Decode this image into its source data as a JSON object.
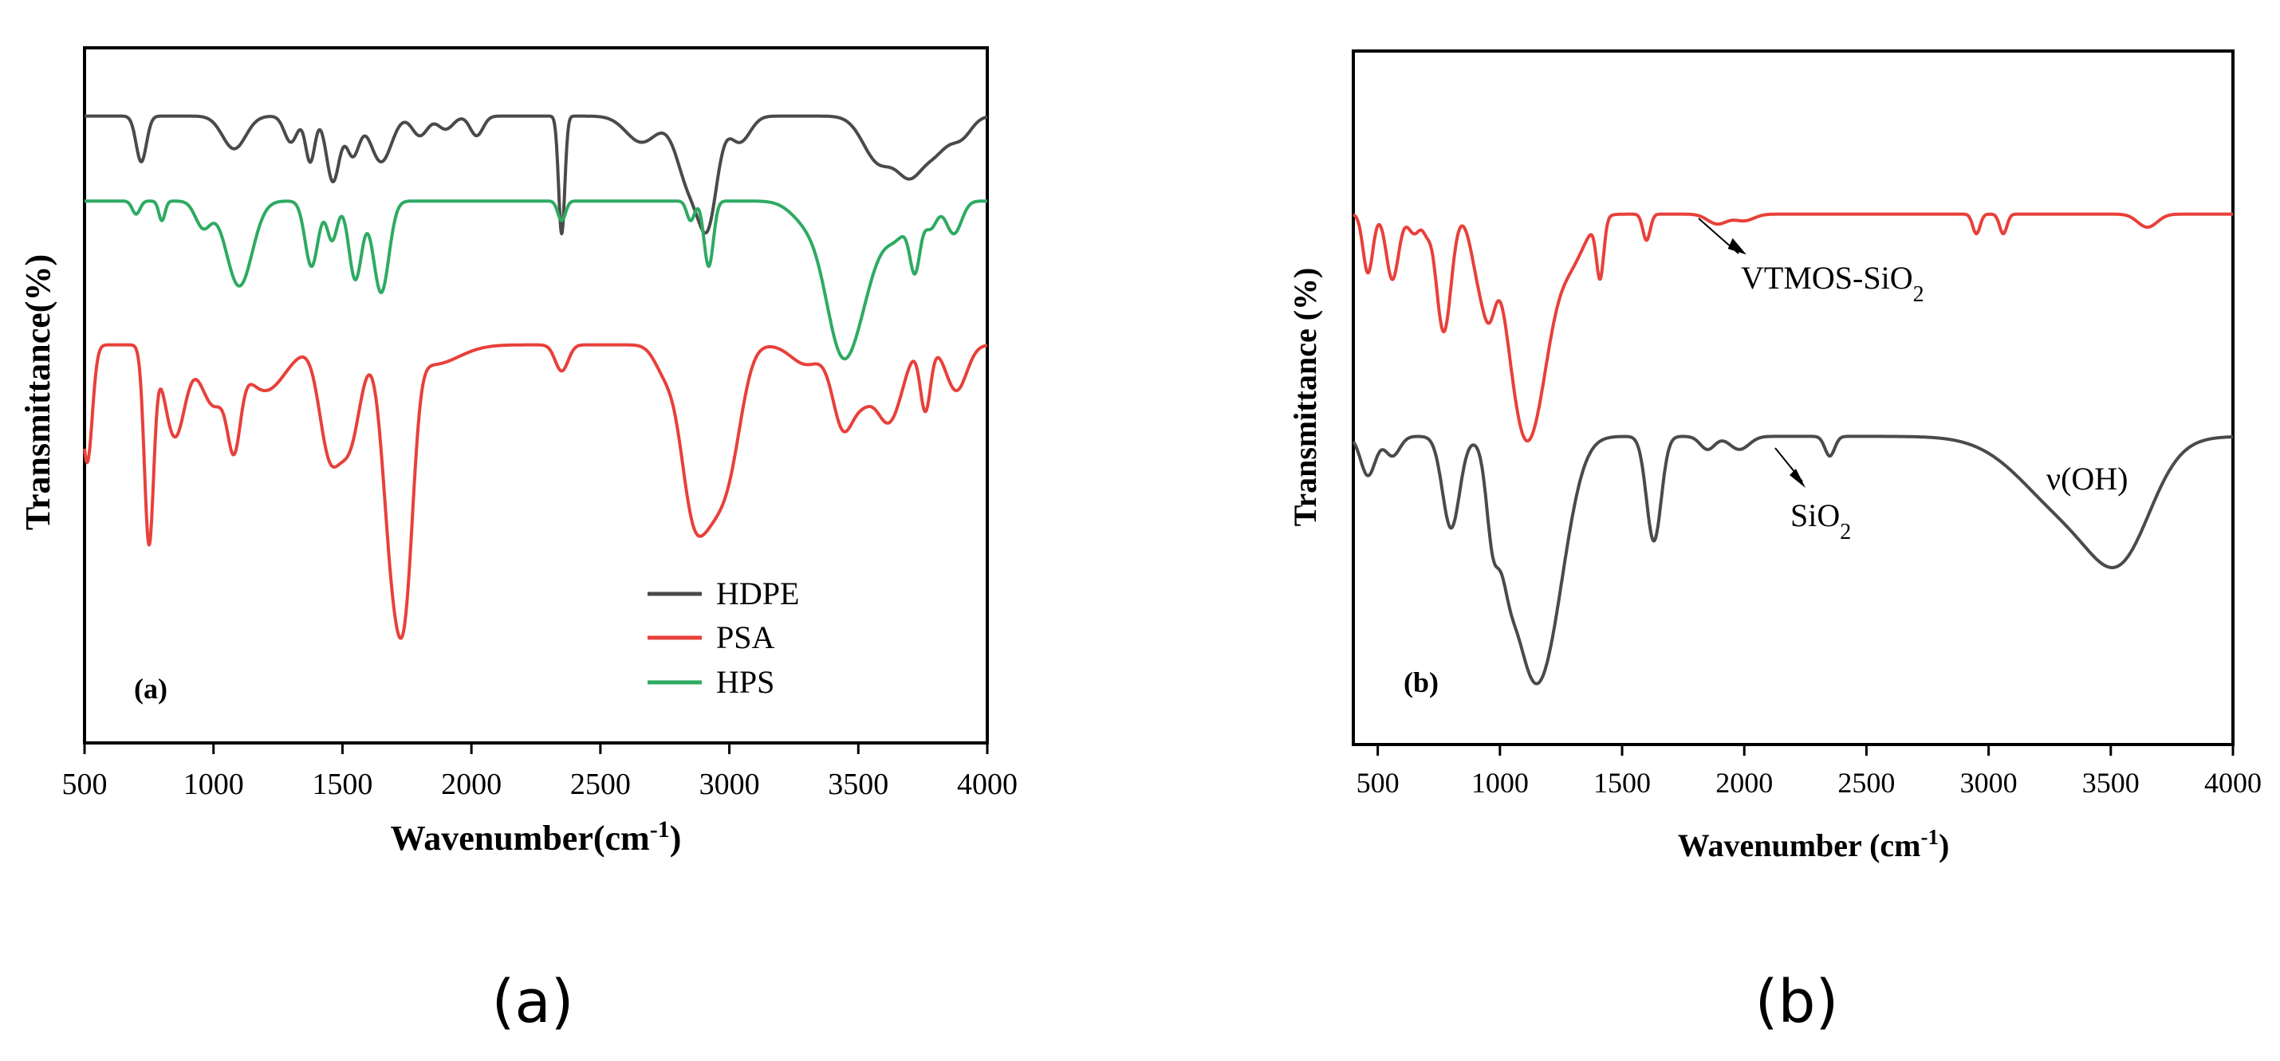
{
  "colors": {
    "hdpe": "#4a4a4a",
    "psa": "#e8403a",
    "hps": "#2eaa62",
    "sio2": "#4a4a4a",
    "vtmos": "#e8403a",
    "axis": "#000000"
  },
  "captions": {
    "a": "(a)",
    "b": "(b)"
  },
  "chart_data": [
    {
      "type": "line",
      "panel_label": "(a)",
      "xlabel": "Wavenumber(cm",
      "xlabel_sup": "-1",
      "xlabel_end": ")",
      "ylabel": "Transmittance(%)",
      "xlim": [
        500,
        4000
      ],
      "ylim": [
        0,
        100
      ],
      "xticks": [
        500,
        1000,
        1500,
        2000,
        2500,
        3000,
        3500,
        4000
      ],
      "legend": {
        "position": "bottom-right",
        "entries": [
          "HDPE",
          "PSA",
          "HPS"
        ]
      },
      "series": [
        {
          "name": "HDPE",
          "color_key": "hdpe",
          "baseline": 92,
          "bands": [
            [
              720,
              7,
              20
            ],
            [
              1080,
              5,
              45
            ],
            [
              1300,
              4,
              25
            ],
            [
              1375,
              7,
              18
            ],
            [
              1463,
              10,
              25
            ],
            [
              1540,
              6,
              25
            ],
            [
              1650,
              7,
              40
            ],
            [
              1800,
              3,
              30
            ],
            [
              1900,
              2,
              30
            ],
            [
              2020,
              3,
              25
            ],
            [
              2350,
              18,
              12
            ],
            [
              2660,
              4,
              60
            ],
            [
              2850,
              11,
              50
            ],
            [
              2920,
              13,
              35
            ],
            [
              3040,
              4,
              40
            ],
            [
              3580,
              7,
              60
            ],
            [
              3700,
              8,
              50
            ],
            [
              3800,
              5,
              50
            ],
            [
              3900,
              3,
              40
            ]
          ]
        },
        {
          "name": "HPS",
          "color_key": "hps",
          "baseline": 79,
          "bands": [
            [
              700,
              2,
              15
            ],
            [
              800,
              3,
              12
            ],
            [
              960,
              4,
              30
            ],
            [
              1100,
              13,
              50
            ],
            [
              1380,
              10,
              25
            ],
            [
              1460,
              6,
              20
            ],
            [
              1550,
              12,
              25
            ],
            [
              1650,
              14,
              30
            ],
            [
              2350,
              3,
              15
            ],
            [
              2850,
              3,
              15
            ],
            [
              2920,
              10,
              18
            ],
            [
              3300,
              3,
              60
            ],
            [
              3430,
              20,
              60
            ],
            [
              3520,
              10,
              60
            ],
            [
              3650,
              5,
              50
            ],
            [
              3720,
              9,
              20
            ],
            [
              3780,
              4,
              25
            ],
            [
              3870,
              5,
              30
            ]
          ]
        },
        {
          "name": "PSA",
          "color_key": "psa",
          "baseline": 57,
          "bands": [
            [
              510,
              18,
              20
            ],
            [
              750,
              30,
              18
            ],
            [
              850,
              14,
              40
            ],
            [
              1000,
              9,
              50
            ],
            [
              1080,
              12,
              25
            ],
            [
              1200,
              7,
              80
            ],
            [
              1450,
              16,
              40
            ],
            [
              1530,
              14,
              40
            ],
            [
              1700,
              34,
              40
            ],
            [
              1750,
              22,
              30
            ],
            [
              1850,
              3,
              100
            ],
            [
              2350,
              4,
              25
            ],
            [
              2750,
              4,
              40
            ],
            [
              2850,
              19,
              45
            ],
            [
              2920,
              18,
              50
            ],
            [
              3000,
              16,
              50
            ],
            [
              3300,
              3,
              60
            ],
            [
              3440,
              12,
              40
            ],
            [
              3520,
              7,
              40
            ],
            [
              3600,
              8,
              40
            ],
            [
              3650,
              6,
              40
            ],
            [
              3760,
              10,
              20
            ],
            [
              3880,
              7,
              40
            ]
          ]
        }
      ]
    },
    {
      "type": "line",
      "panel_label": "(b)",
      "xlabel": "Wavenumber (cm",
      "xlabel_sup": "-1",
      "xlabel_end": ")",
      "ylabel": "Transmittance (%)",
      "xlim": [
        400,
        4000
      ],
      "ylim": [
        0,
        100
      ],
      "xticks": [
        500,
        1000,
        1500,
        2000,
        2500,
        3000,
        3500,
        4000
      ],
      "annotations": [
        {
          "text": "VTMOS-SiO",
          "sub": "2",
          "target_x": 1750,
          "series": "VTMOS-SiO2"
        },
        {
          "text": "SiO",
          "sub": "2",
          "target_x": 1940,
          "series": "SiO2"
        },
        {
          "text": "ν(OH)",
          "sub": "",
          "target_x": 3500,
          "series": "SiO2"
        }
      ],
      "series": [
        {
          "name": "VTMOS-SiO2",
          "color_key": "vtmos",
          "baseline": 77,
          "bands": [
            [
              460,
              9,
              20
            ],
            [
              560,
              10,
              25
            ],
            [
              650,
              3,
              25
            ],
            [
              700,
              2,
              15
            ],
            [
              770,
              18,
              30
            ],
            [
              920,
              10,
              35
            ],
            [
              960,
              8,
              25
            ],
            [
              1080,
              24,
              60
            ],
            [
              1160,
              19,
              60
            ],
            [
              1290,
              7,
              60
            ],
            [
              1410,
              9,
              15
            ],
            [
              1600,
              4,
              15
            ],
            [
              1890,
              1.5,
              40
            ],
            [
              2000,
              1,
              40
            ],
            [
              2950,
              3,
              15
            ],
            [
              3060,
              3,
              15
            ],
            [
              3650,
              2,
              40
            ]
          ]
        },
        {
          "name": "SiO2",
          "color_key": "sio2",
          "baseline": 43,
          "bands": [
            [
              460,
              6,
              30
            ],
            [
              560,
              3,
              30
            ],
            [
              800,
              14,
              35
            ],
            [
              970,
              11,
              25
            ],
            [
              1030,
              6,
              30
            ],
            [
              1100,
              23,
              80
            ],
            [
              1200,
              23,
              80
            ],
            [
              1630,
              16,
              30
            ],
            [
              1850,
              2,
              30
            ],
            [
              1980,
              2,
              40
            ],
            [
              2350,
              3,
              20
            ],
            [
              3350,
              12,
              200
            ],
            [
              3550,
              12,
              120
            ]
          ]
        }
      ]
    }
  ]
}
